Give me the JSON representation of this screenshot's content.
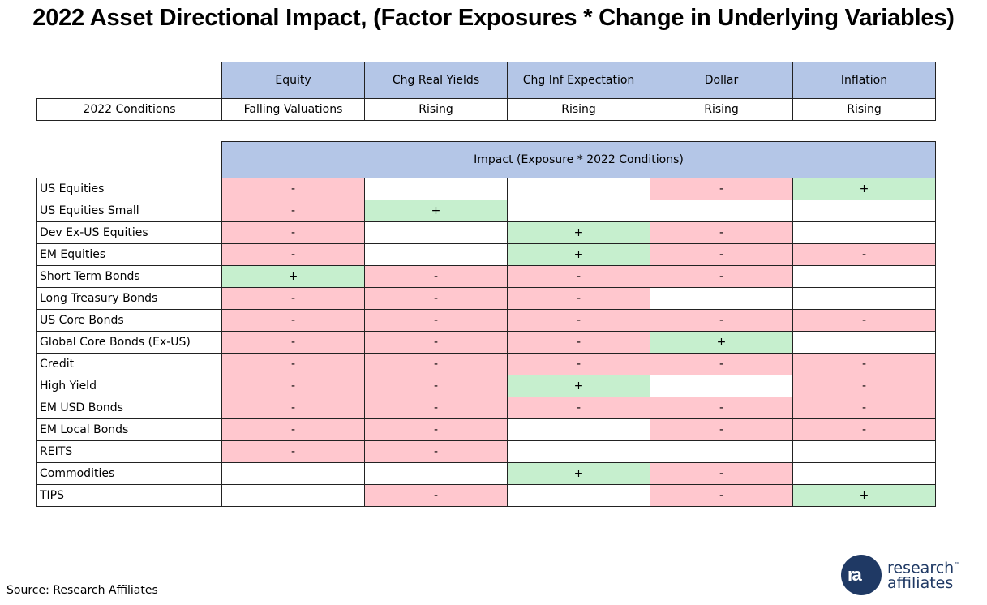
{
  "title": "2022 Asset Directional Impact, (Factor Exposures * Change in Underlying Variables)",
  "factors": [
    "Equity",
    "Chg Real Yields",
    "Chg Inf Expectation",
    "Dollar",
    "Inflation"
  ],
  "conditions": {
    "label": "2022 Conditions",
    "values": [
      "Falling Valuations",
      "Rising",
      "Rising",
      "Rising",
      "Rising"
    ]
  },
  "impact_header": "Impact (Exposure * 2022 Conditions)",
  "rows": [
    {
      "name": "US Equities",
      "cells": [
        "-",
        "",
        "",
        "-",
        "+"
      ]
    },
    {
      "name": "US Equities Small",
      "cells": [
        "-",
        "+",
        "",
        "",
        ""
      ]
    },
    {
      "name": "Dev Ex-US Equities",
      "cells": [
        "-",
        "",
        "+",
        "-",
        ""
      ]
    },
    {
      "name": "EM Equities",
      "cells": [
        "-",
        "",
        "+",
        "-",
        "-"
      ]
    },
    {
      "name": "Short Term Bonds",
      "cells": [
        "+",
        "-",
        "-",
        "-",
        ""
      ]
    },
    {
      "name": "Long Treasury Bonds",
      "cells": [
        "-",
        "-",
        "-",
        "",
        ""
      ]
    },
    {
      "name": "US Core Bonds",
      "cells": [
        "-",
        "-",
        "-",
        "-",
        "-"
      ]
    },
    {
      "name": "Global Core Bonds (Ex-US)",
      "cells": [
        "-",
        "-",
        "-",
        "+",
        ""
      ]
    },
    {
      "name": "Credit",
      "cells": [
        "-",
        "-",
        "-",
        "-",
        "-"
      ]
    },
    {
      "name": "High Yield",
      "cells": [
        "-",
        "-",
        "+",
        "",
        "-"
      ]
    },
    {
      "name": "EM USD Bonds",
      "cells": [
        "-",
        "-",
        "-",
        "-",
        "-"
      ]
    },
    {
      "name": "EM Local Bonds",
      "cells": [
        "-",
        "-",
        "",
        "-",
        "-"
      ]
    },
    {
      "name": "REITS",
      "cells": [
        "-",
        "-",
        "",
        "",
        ""
      ]
    },
    {
      "name": "Commodities",
      "cells": [
        "",
        "",
        "+",
        "-",
        ""
      ]
    },
    {
      "name": "TIPS",
      "cells": [
        "",
        "-",
        "",
        "-",
        "+"
      ]
    }
  ],
  "colors": {
    "header": "#b4c6e7",
    "negative": "#ffc7ce",
    "positive": "#c6efce"
  },
  "source": "Source: Research Affiliates",
  "logo": {
    "mark": "ra",
    "line1": "research",
    "line2": "affiliates",
    "tm": "™"
  }
}
